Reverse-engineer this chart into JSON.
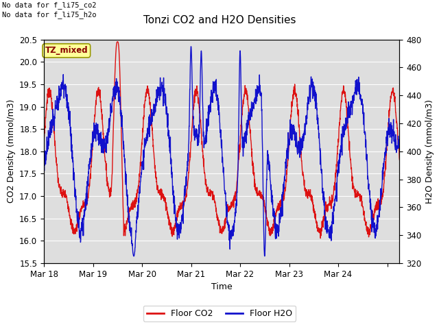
{
  "title": "Tonzi CO2 and H2O Densities",
  "xlabel": "Time",
  "ylabel_left": "CO2 Density (mmol/m3)",
  "ylabel_right": "H2O Density (mmol/m3)",
  "ylim_left": [
    15.5,
    20.5
  ],
  "ylim_right": [
    320,
    480
  ],
  "xtick_positions": [
    0,
    24,
    48,
    72,
    96,
    120,
    144,
    168
  ],
  "xtick_labels": [
    "Mar 18",
    "Mar 19",
    "Mar 20",
    "Mar 21",
    "Mar 22",
    "Mar 23",
    "Mar 24",
    ""
  ],
  "yticks_left": [
    15.5,
    16.0,
    16.5,
    17.0,
    17.5,
    18.0,
    18.5,
    19.0,
    19.5,
    20.0,
    20.5
  ],
  "yticks_right": [
    320,
    340,
    360,
    380,
    400,
    420,
    440,
    460,
    480
  ],
  "color_co2": "#DD1111",
  "color_h2o": "#1111CC",
  "legend_label_co2": "Floor CO2",
  "legend_label_h2o": "Floor H2O",
  "annotation1": "No data for f_li75_co2",
  "annotation2": "No data for f_li75_h2o",
  "box_label": "TZ_mixed",
  "box_facecolor": "#FFFF99",
  "box_edgecolor": "#999900",
  "box_textcolor": "#880000",
  "background_color": "#DEDEDE",
  "figure_facecolor": "#FFFFFF",
  "linewidth": 1.0,
  "title_fontsize": 11,
  "axis_fontsize": 9,
  "tick_fontsize": 8.5,
  "annot_fontsize": 7.5,
  "legend_fontsize": 9
}
